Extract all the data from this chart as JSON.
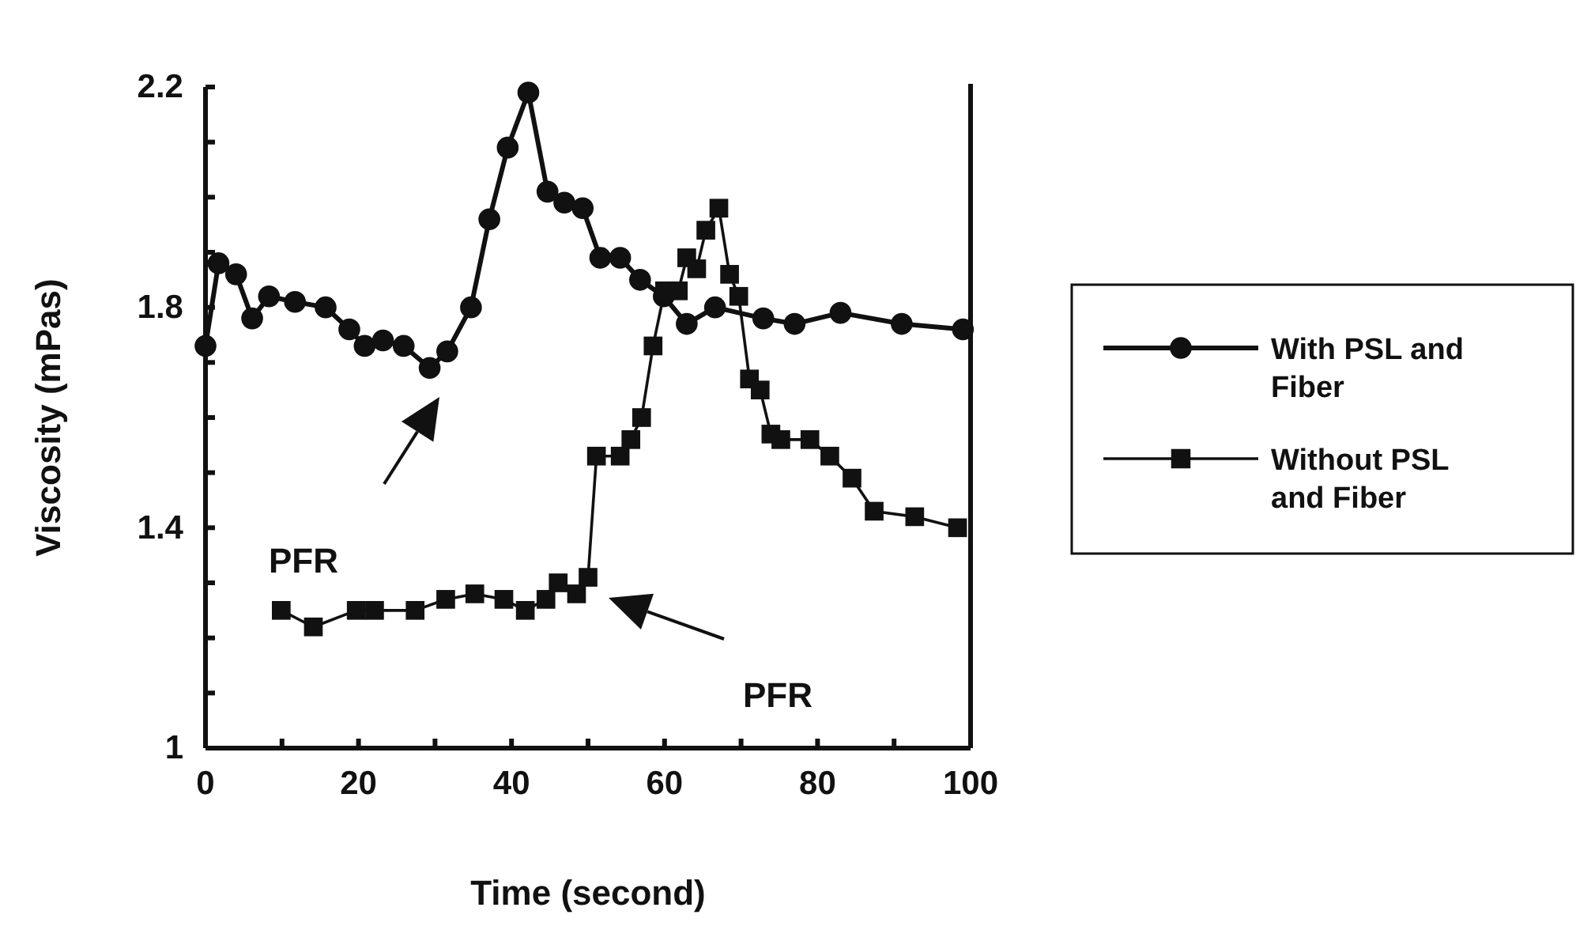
{
  "chart_data": {
    "type": "line",
    "xlabel": "Time (second)",
    "ylabel": "Viscosity  (mPas)",
    "xlim": [
      0,
      100
    ],
    "ylim": [
      1,
      2.2
    ],
    "xticks": [
      0,
      {
        "value": 10,
        "label": null
      },
      20,
      {
        "value": 30,
        "label": null
      },
      40,
      {
        "value": 50,
        "label": null
      },
      60,
      {
        "value": 70,
        "label": null
      },
      80,
      {
        "value": 90,
        "label": null
      },
      100
    ],
    "yticks": [
      1,
      {
        "value": 1.1,
        "label": null
      },
      {
        "value": 1.2,
        "label": null
      },
      {
        "value": 1.3,
        "label": null
      },
      1.4,
      {
        "value": 1.5,
        "label": null
      },
      {
        "value": 1.6,
        "label": null
      },
      {
        "value": 1.7,
        "label": null
      },
      1.8,
      {
        "value": 1.9,
        "label": null
      },
      {
        "value": 2,
        "label": null
      },
      {
        "value": 2.1,
        "label": null
      },
      2.2
    ],
    "grid": false,
    "legend": "right",
    "annotations": [
      "PFR",
      "PFR"
    ],
    "series": [
      {
        "name": "With PSL and Fiber",
        "color": "#111111",
        "marker": "circle",
        "x": [
          0,
          1.7,
          4,
          6.1,
          8.3,
          11.7,
          15.7,
          18.8,
          20.8,
          23.2,
          25.9,
          29.3,
          31.6,
          34.7,
          37.1,
          39.5,
          42.2,
          44.7,
          46.9,
          49.3,
          51.6,
          54.2,
          56.8,
          59.9,
          62.9,
          66.6,
          72.9,
          77,
          83,
          91,
          99
        ],
        "values": [
          1.73,
          1.88,
          1.86,
          1.78,
          1.82,
          1.81,
          1.8,
          1.76,
          1.73,
          1.74,
          1.73,
          1.69,
          1.72,
          1.8,
          1.96,
          2.09,
          2.19,
          2.01,
          1.99,
          1.98,
          1.89,
          1.89,
          1.85,
          1.82,
          1.77,
          1.8,
          1.78,
          1.77,
          1.79,
          1.77,
          1.76
        ]
      },
      {
        "name": "Without PSL and Fiber",
        "color": "#111111",
        "marker": "square",
        "x": [
          9.9,
          14.1,
          19.7,
          22.1,
          27.4,
          31.4,
          35.2,
          39,
          41.8,
          44.5,
          46.1,
          48.5,
          50,
          51.1,
          54.2,
          55.6,
          57,
          58.5,
          60,
          61.8,
          62.9,
          64.2,
          65.4,
          67.1,
          68.5,
          69.7,
          71.1,
          72.5,
          73.9,
          75.2,
          79,
          81.6,
          84.5,
          87.4,
          92.7,
          98.3
        ],
        "values": [
          1.25,
          1.22,
          1.25,
          1.25,
          1.25,
          1.27,
          1.28,
          1.27,
          1.25,
          1.27,
          1.3,
          1.28,
          1.31,
          1.53,
          1.53,
          1.56,
          1.6,
          1.73,
          1.83,
          1.83,
          1.89,
          1.87,
          1.94,
          1.98,
          1.86,
          1.82,
          1.67,
          1.65,
          1.57,
          1.56,
          1.56,
          1.53,
          1.49,
          1.43,
          1.42,
          1.4
        ]
      }
    ]
  }
}
